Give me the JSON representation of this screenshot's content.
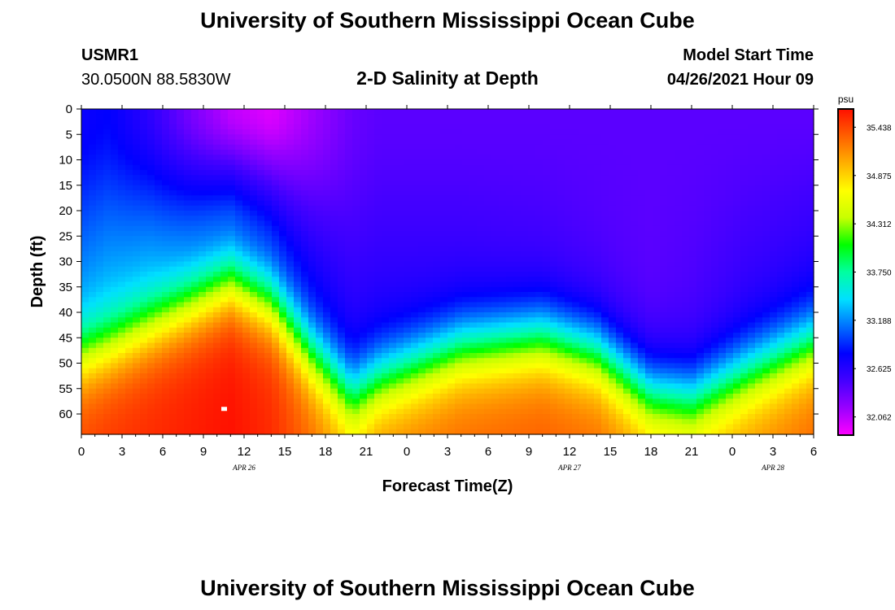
{
  "header": {
    "title": "University of Southern Mississippi Ocean Cube",
    "footer_title": "University of Southern Mississippi Ocean Cube",
    "station_id": "USMR1",
    "coordinates": "30.0500N  88.5830W",
    "plot_title": "2-D Salinity at Depth",
    "model_start_label": "Model Start Time",
    "model_start_value": "04/26/2021 Hour 09"
  },
  "chart_data": {
    "type": "heatmap",
    "title": "2-D Salinity at Depth",
    "xlabel": "Forecast Time(Z)",
    "ylabel": "Depth (ft)",
    "x_range_hours": [
      0,
      54
    ],
    "y_range_ft": [
      0,
      64
    ],
    "x_ticks": [
      "0",
      "3",
      "6",
      "9",
      "12",
      "15",
      "18",
      "21",
      "0",
      "3",
      "6",
      "9",
      "12",
      "15",
      "18",
      "21",
      "0",
      "3",
      "6"
    ],
    "y_ticks": [
      "0",
      "5",
      "10",
      "15",
      "20",
      "25",
      "30",
      "35",
      "40",
      "45",
      "50",
      "55",
      "60"
    ],
    "date_labels": [
      {
        "text": "APR 26",
        "hour": 12
      },
      {
        "text": "APR 27",
        "hour": 36
      },
      {
        "text": "APR 28",
        "hour": 51
      }
    ],
    "colorbar": {
      "unit": "psu",
      "range": [
        31.85,
        35.65
      ],
      "labels": [
        "35.438",
        "34.875",
        "34.312",
        "33.750",
        "33.188",
        "32.625",
        "32.062"
      ]
    },
    "profile_keyframes": [
      {
        "hour": 0,
        "surface": 32.75,
        "mid": 33.15,
        "halocline_ft": 48,
        "bottom": 35.45
      },
      {
        "hour": 2,
        "surface": 32.8,
        "mid": 33.2,
        "halocline_ft": 46,
        "bottom": 35.5
      },
      {
        "hour": 5,
        "surface": 32.6,
        "mid": 33.15,
        "halocline_ft": 42,
        "bottom": 35.55
      },
      {
        "hour": 8,
        "surface": 32.3,
        "mid": 33.0,
        "halocline_ft": 38,
        "bottom": 35.6
      },
      {
        "hour": 11,
        "surface": 32.05,
        "mid": 32.9,
        "halocline_ft": 34,
        "bottom": 35.65
      },
      {
        "hour": 14,
        "surface": 31.95,
        "mid": 32.8,
        "halocline_ft": 38,
        "bottom": 35.55
      },
      {
        "hour": 17,
        "surface": 32.15,
        "mid": 32.7,
        "halocline_ft": 48,
        "bottom": 35.3
      },
      {
        "hour": 20,
        "surface": 32.35,
        "mid": 32.6,
        "halocline_ft": 56,
        "bottom": 35.0
      },
      {
        "hour": 22,
        "surface": 32.4,
        "mid": 32.6,
        "halocline_ft": 53,
        "bottom": 35.2
      },
      {
        "hour": 28,
        "surface": 32.4,
        "mid": 32.55,
        "halocline_ft": 47,
        "bottom": 35.3
      },
      {
        "hour": 34,
        "surface": 32.4,
        "mid": 32.5,
        "halocline_ft": 45,
        "bottom": 35.35
      },
      {
        "hour": 38,
        "surface": 32.4,
        "mid": 32.45,
        "halocline_ft": 48,
        "bottom": 35.3
      },
      {
        "hour": 42,
        "surface": 32.4,
        "mid": 32.4,
        "halocline_ft": 56,
        "bottom": 35.1
      },
      {
        "hour": 45,
        "surface": 32.4,
        "mid": 32.45,
        "halocline_ft": 57,
        "bottom": 35.0
      },
      {
        "hour": 49,
        "surface": 32.4,
        "mid": 32.55,
        "halocline_ft": 52,
        "bottom": 35.15
      },
      {
        "hour": 54,
        "surface": 32.4,
        "mid": 32.6,
        "halocline_ft": 46,
        "bottom": 35.3
      }
    ],
    "marker": {
      "hour": 10.5,
      "depth_ft": 59
    }
  },
  "colors": {
    "ramp": [
      "#ff00ff",
      "#9900ff",
      "#4400ff",
      "#0000ff",
      "#0070ff",
      "#00e0ff",
      "#00ffa0",
      "#00ff00",
      "#c8ff00",
      "#ffff00",
      "#ffb000",
      "#ff6000",
      "#ff1000"
    ]
  }
}
